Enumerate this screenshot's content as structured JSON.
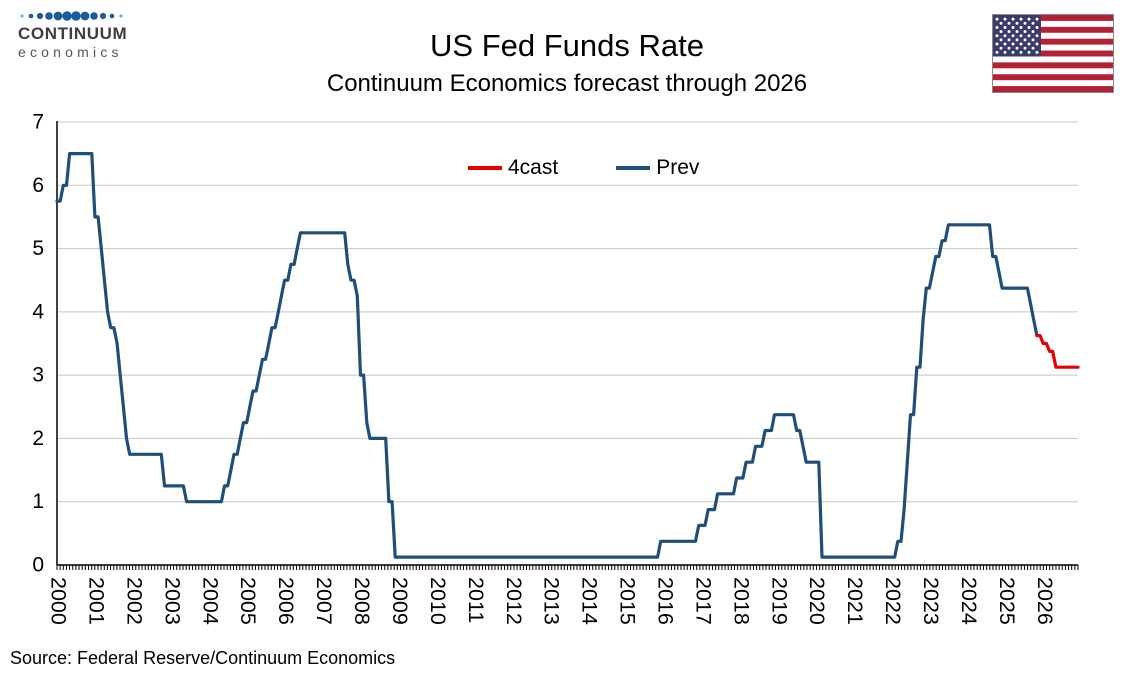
{
  "logo": {
    "line1": "CONTINUUM",
    "line2": "economics"
  },
  "source": "Source: Federal Reserve/Continuum Economics",
  "legend": [
    {
      "label": "4cast",
      "color": "#E60000"
    },
    {
      "label": "Prev",
      "color": "#1F4E79"
    }
  ],
  "flag": {
    "red": "#B22234",
    "blue": "#3C3B6E",
    "white": "#FFFFFF"
  },
  "chart_data": {
    "type": "line",
    "title": "US Fed Funds Rate",
    "subtitle": "Continuum Economics forecast through 2026",
    "xlabel": "",
    "ylabel": "",
    "ylim": [
      0,
      7
    ],
    "yticks": [
      0,
      1,
      2,
      3,
      4,
      5,
      6,
      7
    ],
    "x_start_year": 2000,
    "x_end_year": 2026,
    "x_unit": "month",
    "grid": "horizontal",
    "legend_position": "top-inside",
    "x_tick_labels": [
      "2000",
      "2001",
      "2002",
      "2003",
      "2004",
      "2005",
      "2006",
      "2007",
      "2008",
      "2009",
      "2010",
      "2011",
      "2012",
      "2013",
      "2014",
      "2015",
      "2016",
      "2017",
      "2018",
      "2019",
      "2020",
      "2021",
      "2022",
      "2023",
      "2024",
      "2025",
      "2026"
    ],
    "series": [
      {
        "name": "Prev",
        "color": "#1F4E79",
        "start_month": "2000-01",
        "start_index": 0,
        "values": [
          5.75,
          5.75,
          6,
          6,
          6.5,
          6.5,
          6.5,
          6.5,
          6.5,
          6.5,
          6.5,
          6.5,
          5.5,
          5.5,
          5,
          4.5,
          4,
          3.75,
          3.75,
          3.5,
          3,
          2.5,
          2,
          1.75,
          1.75,
          1.75,
          1.75,
          1.75,
          1.75,
          1.75,
          1.75,
          1.75,
          1.75,
          1.75,
          1.25,
          1.25,
          1.25,
          1.25,
          1.25,
          1.25,
          1.25,
          1,
          1,
          1,
          1,
          1,
          1,
          1,
          1,
          1,
          1,
          1,
          1,
          1.25,
          1.25,
          1.5,
          1.75,
          1.75,
          2,
          2.25,
          2.25,
          2.5,
          2.75,
          2.75,
          3,
          3.25,
          3.25,
          3.5,
          3.75,
          3.75,
          4,
          4.25,
          4.5,
          4.5,
          4.75,
          4.75,
          5,
          5.25,
          5.25,
          5.25,
          5.25,
          5.25,
          5.25,
          5.25,
          5.25,
          5.25,
          5.25,
          5.25,
          5.25,
          5.25,
          5.25,
          5.25,
          4.75,
          4.5,
          4.5,
          4.25,
          3,
          3,
          2.25,
          2,
          2,
          2,
          2,
          2,
          2,
          1,
          1,
          0.125,
          0.125,
          0.125,
          0.125,
          0.125,
          0.125,
          0.125,
          0.125,
          0.125,
          0.125,
          0.125,
          0.125,
          0.125,
          0.125,
          0.125,
          0.125,
          0.125,
          0.125,
          0.125,
          0.125,
          0.125,
          0.125,
          0.125,
          0.125,
          0.125,
          0.125,
          0.125,
          0.125,
          0.125,
          0.125,
          0.125,
          0.125,
          0.125,
          0.125,
          0.125,
          0.125,
          0.125,
          0.125,
          0.125,
          0.125,
          0.125,
          0.125,
          0.125,
          0.125,
          0.125,
          0.125,
          0.125,
          0.125,
          0.125,
          0.125,
          0.125,
          0.125,
          0.125,
          0.125,
          0.125,
          0.125,
          0.125,
          0.125,
          0.125,
          0.125,
          0.125,
          0.125,
          0.125,
          0.125,
          0.125,
          0.125,
          0.125,
          0.125,
          0.125,
          0.125,
          0.125,
          0.125,
          0.125,
          0.125,
          0.125,
          0.125,
          0.125,
          0.125,
          0.125,
          0.125,
          0.125,
          0.125,
          0.125,
          0.125,
          0.375,
          0.375,
          0.375,
          0.375,
          0.375,
          0.375,
          0.375,
          0.375,
          0.375,
          0.375,
          0.375,
          0.375,
          0.625,
          0.625,
          0.625,
          0.875,
          0.875,
          0.875,
          1.125,
          1.125,
          1.125,
          1.125,
          1.125,
          1.125,
          1.375,
          1.375,
          1.375,
          1.625,
          1.625,
          1.625,
          1.875,
          1.875,
          1.875,
          2.125,
          2.125,
          2.125,
          2.375,
          2.375,
          2.375,
          2.375,
          2.375,
          2.375,
          2.375,
          2.125,
          2.125,
          1.875,
          1.625,
          1.625,
          1.625,
          1.625,
          1.625,
          0.125,
          0.125,
          0.125,
          0.125,
          0.125,
          0.125,
          0.125,
          0.125,
          0.125,
          0.125,
          0.125,
          0.125,
          0.125,
          0.125,
          0.125,
          0.125,
          0.125,
          0.125,
          0.125,
          0.125,
          0.125,
          0.125,
          0.125,
          0.125,
          0.375,
          0.375,
          0.875,
          1.625,
          2.375,
          2.375,
          3.125,
          3.125,
          3.875,
          4.375,
          4.375,
          4.625,
          4.875,
          4.875,
          5.125,
          5.125,
          5.375,
          5.375,
          5.375,
          5.375,
          5.375,
          5.375,
          5.375,
          5.375,
          5.375,
          5.375,
          5.375,
          5.375,
          5.375,
          5.375,
          4.875,
          4.875,
          4.625,
          4.375,
          4.375,
          4.375,
          4.375,
          4.375,
          4.375,
          4.375,
          4.375,
          4.375,
          4.125,
          3.875,
          3.625
        ]
      },
      {
        "name": "4cast",
        "color": "#E60000",
        "start_month": "2025-11",
        "start_index": 310,
        "values": [
          3.625,
          3.625,
          3.5,
          3.5,
          3.375,
          3.375,
          3.125,
          3.125,
          3.125,
          3.125,
          3.125,
          3.125,
          3.125,
          3.125
        ]
      }
    ]
  }
}
